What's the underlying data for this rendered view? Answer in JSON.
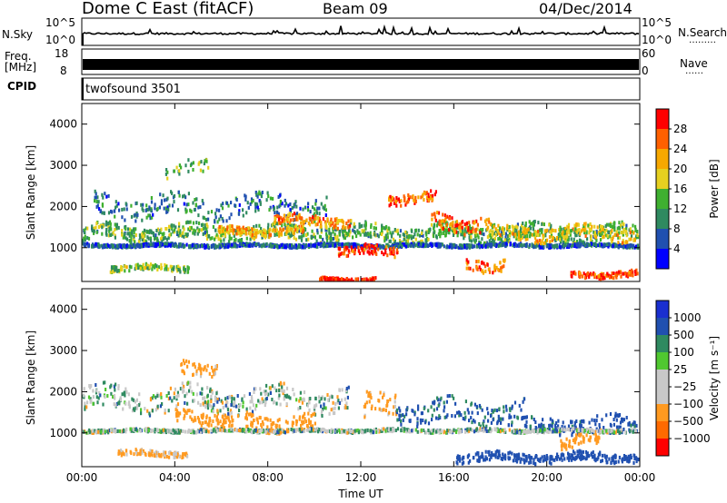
{
  "header": {
    "station": "Dome C East (fitACF)",
    "beam": "Beam 09",
    "date": "04/Dec/2014"
  },
  "strips": {
    "nsky": {
      "label": "N.Sky",
      "ticks_left": [
        "10^5",
        "10^0"
      ],
      "ticks_right": [
        "10^5",
        "10^0"
      ],
      "right_label": "N.Search",
      "right_legend": "………"
    },
    "freq": {
      "label_line1": "Freq.",
      "label_line2": "[MHz]",
      "ticks_left": [
        "18",
        "8"
      ],
      "ticks_right": [
        "60",
        "0"
      ],
      "right_label": "Nave",
      "right_legend": "……"
    },
    "cpid": {
      "label": "CPID",
      "value": "twofsound 3501"
    }
  },
  "colors": {
    "power": [
      "#0000ff",
      "#2050b0",
      "#2f8a60",
      "#3fb030",
      "#e6d020",
      "#f7a800",
      "#ff6000",
      "#ff0000"
    ],
    "velocity": [
      "#ff0000",
      "#ff6a00",
      "#ff9a20",
      "#c8c8c8",
      "#c8c8c8",
      "#50c830",
      "#2f8a60",
      "#2050b0",
      "#1a2fd0"
    ]
  },
  "chart_data": [
    {
      "type": "heatmap",
      "title": "",
      "xlabel": "Time UT",
      "ylabel": "Slant Range [km]",
      "x_tick_labels": [
        "00:00",
        "04:00",
        "08:00",
        "12:00",
        "16:00",
        "20:00",
        "00:00"
      ],
      "xlim": [
        0,
        24
      ],
      "y_tick_labels": [
        "1000",
        "2000",
        "3000",
        "4000"
      ],
      "ylim": [
        180,
        4500
      ],
      "colorbar": {
        "label": "Power [dB]",
        "ticks": [
          "4",
          "8",
          "12",
          "16",
          "20",
          "24",
          "28"
        ],
        "range": [
          0,
          30
        ]
      },
      "features": [
        {
          "t0": 0.0,
          "t1": 23.9,
          "r": 1350,
          "w": 300,
          "value": 12,
          "density": 0.75
        },
        {
          "t0": 0.5,
          "t1": 10.5,
          "r": 2000,
          "w": 420,
          "value": 8,
          "density": 0.45
        },
        {
          "t0": 0.0,
          "t1": 23.9,
          "r": 1050,
          "w": 60,
          "value": 6,
          "density": 0.8
        },
        {
          "t0": 1.2,
          "t1": 4.6,
          "r": 500,
          "w": 110,
          "value": 14,
          "density": 0.55
        },
        {
          "t0": 5.8,
          "t1": 9.5,
          "r": 1400,
          "w": 160,
          "value": 20,
          "density": 0.6
        },
        {
          "t0": 8.2,
          "t1": 11.6,
          "r": 1650,
          "w": 200,
          "value": 22,
          "density": 0.6
        },
        {
          "t0": 11.0,
          "t1": 13.6,
          "r": 900,
          "w": 200,
          "value": 26,
          "density": 0.55
        },
        {
          "t0": 13.0,
          "t1": 15.2,
          "r": 2200,
          "w": 200,
          "value": 24,
          "density": 0.55
        },
        {
          "t0": 15.0,
          "t1": 17.6,
          "r": 1600,
          "w": 320,
          "value": 24,
          "density": 0.55
        },
        {
          "t0": 17.6,
          "t1": 23.9,
          "r": 1350,
          "w": 260,
          "value": 18,
          "density": 0.55
        },
        {
          "t0": 10.2,
          "t1": 12.6,
          "r": 230,
          "w": 60,
          "value": 28,
          "density": 0.7
        },
        {
          "t0": 21.0,
          "t1": 23.9,
          "r": 350,
          "w": 120,
          "value": 26,
          "density": 0.55
        },
        {
          "t0": 3.5,
          "t1": 5.5,
          "r": 2900,
          "w": 280,
          "value": 14,
          "density": 0.25
        },
        {
          "t0": 16.5,
          "t1": 18.2,
          "r": 600,
          "w": 240,
          "value": 24,
          "density": 0.45
        }
      ]
    },
    {
      "type": "heatmap",
      "title": "",
      "xlabel": "Time UT",
      "ylabel": "Slant Range [km]",
      "x_tick_labels": [
        "00:00",
        "04:00",
        "08:00",
        "12:00",
        "16:00",
        "20:00",
        "00:00"
      ],
      "xlim": [
        0,
        24
      ],
      "y_tick_labels": [
        "1000",
        "2000",
        "3000",
        "4000"
      ],
      "ylim": [
        180,
        4500
      ],
      "colorbar": {
        "label": "Velocity [m s⁻¹]",
        "ticks": [
          "1000",
          "500",
          "100",
          "25",
          "−25",
          "−100",
          "−500",
          "−1000"
        ],
        "range": [
          -1000,
          1000
        ]
      },
      "features": [
        {
          "t0": 0.0,
          "t1": 11.5,
          "r": 1800,
          "w": 450,
          "value": 0,
          "density": 0.55
        },
        {
          "t0": 4.0,
          "t1": 6.5,
          "r": 1350,
          "w": 260,
          "value": -300,
          "density": 0.55
        },
        {
          "t0": 4.2,
          "t1": 6.0,
          "r": 2600,
          "w": 260,
          "value": -200,
          "density": 0.4
        },
        {
          "t0": 7.0,
          "t1": 10.0,
          "r": 1250,
          "w": 300,
          "value": -250,
          "density": 0.55
        },
        {
          "t0": 1.5,
          "t1": 4.5,
          "r": 500,
          "w": 110,
          "value": -150,
          "density": 0.55
        },
        {
          "t0": 12.0,
          "t1": 13.5,
          "r": 1600,
          "w": 500,
          "value": -200,
          "density": 0.5
        },
        {
          "t0": 13.5,
          "t1": 19.0,
          "r": 1500,
          "w": 450,
          "value": 150,
          "density": 0.5
        },
        {
          "t0": 19.0,
          "t1": 23.9,
          "r": 1200,
          "w": 300,
          "value": 200,
          "density": 0.45
        },
        {
          "t0": 20.5,
          "t1": 22.5,
          "r": 800,
          "w": 250,
          "value": -300,
          "density": 0.45
        },
        {
          "t0": 16.0,
          "t1": 23.9,
          "r": 400,
          "w": 180,
          "value": 350,
          "density": 0.6
        },
        {
          "t0": 0.0,
          "t1": 23.9,
          "r": 1050,
          "w": 60,
          "value": 0,
          "density": 0.6
        }
      ]
    }
  ]
}
